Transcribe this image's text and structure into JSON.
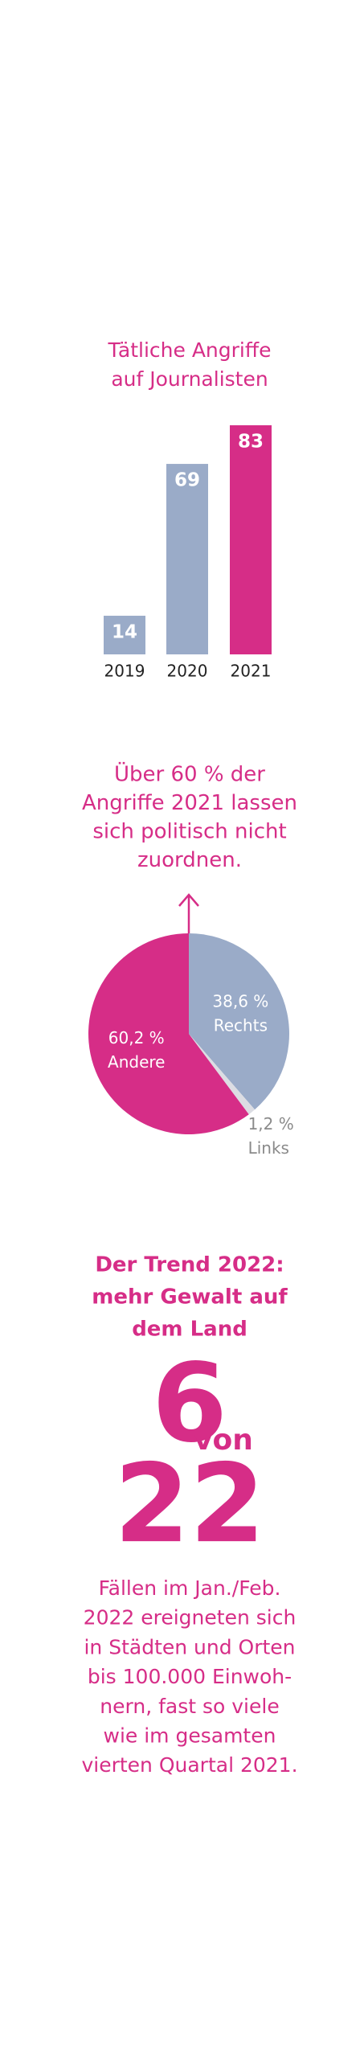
{
  "chart_data": [
    {
      "type": "bar",
      "title": [
        "Tätliche Angriffe",
        "auf Journalisten"
      ],
      "categories": [
        "2019",
        "2020",
        "2021"
      ],
      "values": [
        14,
        69,
        83
      ],
      "colors": [
        "#9aabc8",
        "#9aabc8",
        "#d62d87"
      ]
    },
    {
      "type": "pie",
      "title": [
        "Über 60 % der",
        "Angriffe 2021 lassen",
        "sich politisch nicht",
        "zuordnen."
      ],
      "labels": [
        "Rechts",
        "Links",
        "Andere"
      ],
      "values": [
        38.6,
        1.2,
        60.2
      ],
      "value_labels": [
        "38,6 %",
        "1,2 %",
        "60,2 %"
      ],
      "colors": [
        "#9aabc8",
        "#dcdde3",
        "#d62d87"
      ]
    }
  ],
  "trend": {
    "heading": [
      "Der Trend 2022:",
      "mehr Gewalt auf",
      "dem Land"
    ],
    "count": "6",
    "of": "von",
    "total": "22",
    "text": [
      "Fällen im Jan./Feb.",
      "2022 ereigneten sich",
      "in Städten und Orten",
      "bis 100.000 Einwoh-",
      "nern, fast so viele",
      "wie im gesamten",
      "vierten Quartal 2021."
    ]
  }
}
